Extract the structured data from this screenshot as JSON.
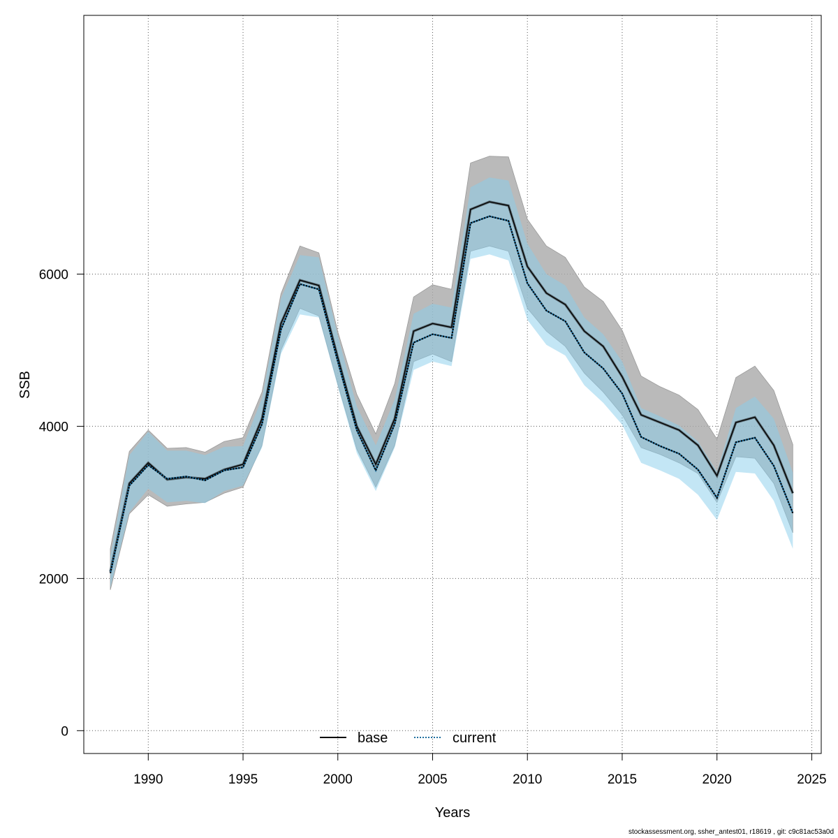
{
  "chart_data": {
    "type": "line",
    "title": "",
    "xlabel": "Years",
    "ylabel": "SSB",
    "xlim": [
      1986.6,
      2025.5
    ],
    "ylim": [
      -300,
      9400
    ],
    "x_ticks": [
      1990,
      1995,
      2000,
      2005,
      2010,
      2015,
      2020,
      2025
    ],
    "x_tick_labels": [
      "1990",
      "1995",
      "2000",
      "2005",
      "2010",
      "2015",
      "2020",
      "2025"
    ],
    "y_ticks": [
      0,
      2000,
      4000,
      6000
    ],
    "y_tick_labels": [
      "0",
      "2000",
      "4000",
      "6000"
    ],
    "grid": true,
    "legend_position": "bottom",
    "x": [
      1988,
      1989,
      1990,
      1991,
      1992,
      1993,
      1994,
      1995,
      1996,
      1997,
      1998,
      1999,
      2000,
      2001,
      2002,
      2003,
      2004,
      2005,
      2006,
      2007,
      2008,
      2009,
      2010,
      2011,
      2012,
      2013,
      2014,
      2015,
      2016,
      2017,
      2018,
      2019,
      2020,
      2021,
      2022,
      2023,
      2024
    ],
    "series": [
      {
        "name": "base",
        "line_style": "solid",
        "line_color": "#000000",
        "band_color": "#a9a9a9",
        "values": [
          2090,
          3250,
          3520,
          3300,
          3330,
          3310,
          3430,
          3500,
          4100,
          5350,
          5920,
          5850,
          4900,
          4000,
          3500,
          4100,
          5250,
          5350,
          5300,
          6850,
          6950,
          6900,
          6100,
          5750,
          5600,
          5250,
          5050,
          4650,
          4150,
          4050,
          3950,
          3750,
          3350,
          4050,
          4120,
          3750,
          3120
        ],
        "lower": [
          1850,
          2850,
          3100,
          2950,
          2980,
          3000,
          3120,
          3200,
          3750,
          5000,
          5550,
          5450,
          4550,
          3700,
          3200,
          3750,
          4850,
          4950,
          4850,
          6300,
          6370,
          6300,
          5550,
          5250,
          5050,
          4700,
          4450,
          4150,
          3720,
          3630,
          3520,
          3380,
          3000,
          3600,
          3580,
          3250,
          2600
        ],
        "upper": [
          2390,
          3670,
          3950,
          3710,
          3720,
          3660,
          3800,
          3850,
          4450,
          5740,
          6370,
          6280,
          5240,
          4420,
          3900,
          4560,
          5700,
          5860,
          5800,
          7460,
          7550,
          7540,
          6720,
          6370,
          6220,
          5830,
          5640,
          5260,
          4660,
          4520,
          4410,
          4220,
          3830,
          4640,
          4790,
          4470,
          3760
        ]
      },
      {
        "name": "current",
        "line_style": "dotted",
        "line_color": "#1f6f9f",
        "band_color": "#87ceeb",
        "values": [
          2070,
          3220,
          3490,
          3310,
          3340,
          3290,
          3420,
          3460,
          4030,
          5270,
          5870,
          5800,
          4850,
          3950,
          3420,
          4030,
          5100,
          5210,
          5160,
          6670,
          6760,
          6700,
          5880,
          5520,
          5380,
          4970,
          4760,
          4430,
          3860,
          3740,
          3640,
          3430,
          3060,
          3790,
          3850,
          3480,
          2860
        ],
        "lower": [
          1880,
          2870,
          3180,
          3000,
          3020,
          2990,
          3150,
          3220,
          3720,
          4950,
          5470,
          5430,
          4520,
          3650,
          3150,
          3720,
          4740,
          4850,
          4790,
          6200,
          6260,
          6180,
          5400,
          5070,
          4930,
          4540,
          4310,
          4020,
          3520,
          3420,
          3310,
          3100,
          2770,
          3400,
          3380,
          3020,
          2390
        ],
        "upper": [
          2290,
          3620,
          3930,
          3680,
          3680,
          3620,
          3730,
          3740,
          4370,
          5680,
          6250,
          6220,
          5190,
          4260,
          3750,
          4350,
          5480,
          5610,
          5560,
          7140,
          7270,
          7230,
          6400,
          6000,
          5850,
          5430,
          5210,
          4850,
          4240,
          4130,
          4010,
          3800,
          3400,
          4240,
          4390,
          4100,
          3390
        ]
      }
    ]
  },
  "footer": {
    "text": "stockassessment.org, ssher_antest01, r18619 , git: c9c81ac53a0d"
  }
}
